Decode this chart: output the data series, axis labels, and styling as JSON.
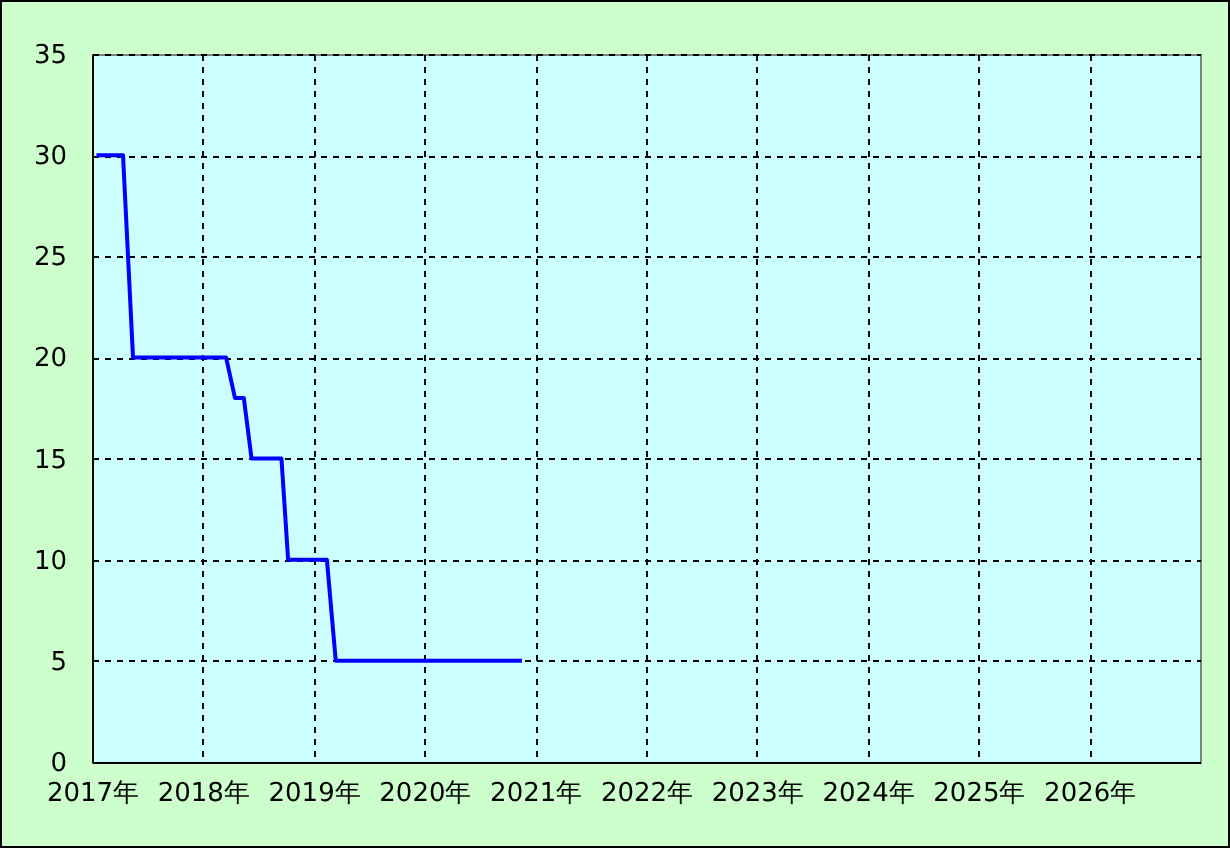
{
  "chart_data": {
    "type": "line",
    "x": [
      2017.04,
      2017.28,
      2017.37,
      2018.21,
      2018.29,
      2018.37,
      2018.44,
      2018.71,
      2018.77,
      2019.12,
      2019.2,
      2020.88
    ],
    "series": [
      {
        "color": "#0000ff",
        "values": [
          30,
          30,
          20,
          20,
          18,
          18,
          15,
          15,
          10,
          10,
          5,
          5
        ]
      }
    ],
    "xlim": [
      2017,
      2027
    ],
    "xticks": [
      {
        "value": 2017,
        "label": "2017年"
      },
      {
        "value": 2018,
        "label": "2018年"
      },
      {
        "value": 2019,
        "label": "2019年"
      },
      {
        "value": 2020,
        "label": "2020年"
      },
      {
        "value": 2021,
        "label": "2021年"
      },
      {
        "value": 2022,
        "label": "2022年"
      },
      {
        "value": 2023,
        "label": "2023年"
      },
      {
        "value": 2024,
        "label": "2024年"
      },
      {
        "value": 2025,
        "label": "2025年"
      },
      {
        "value": 2026,
        "label": "2026年"
      }
    ],
    "ylim": [
      0,
      35
    ],
    "yticks": [
      0,
      5,
      10,
      15,
      20,
      25,
      30,
      35
    ],
    "grid": true
  }
}
